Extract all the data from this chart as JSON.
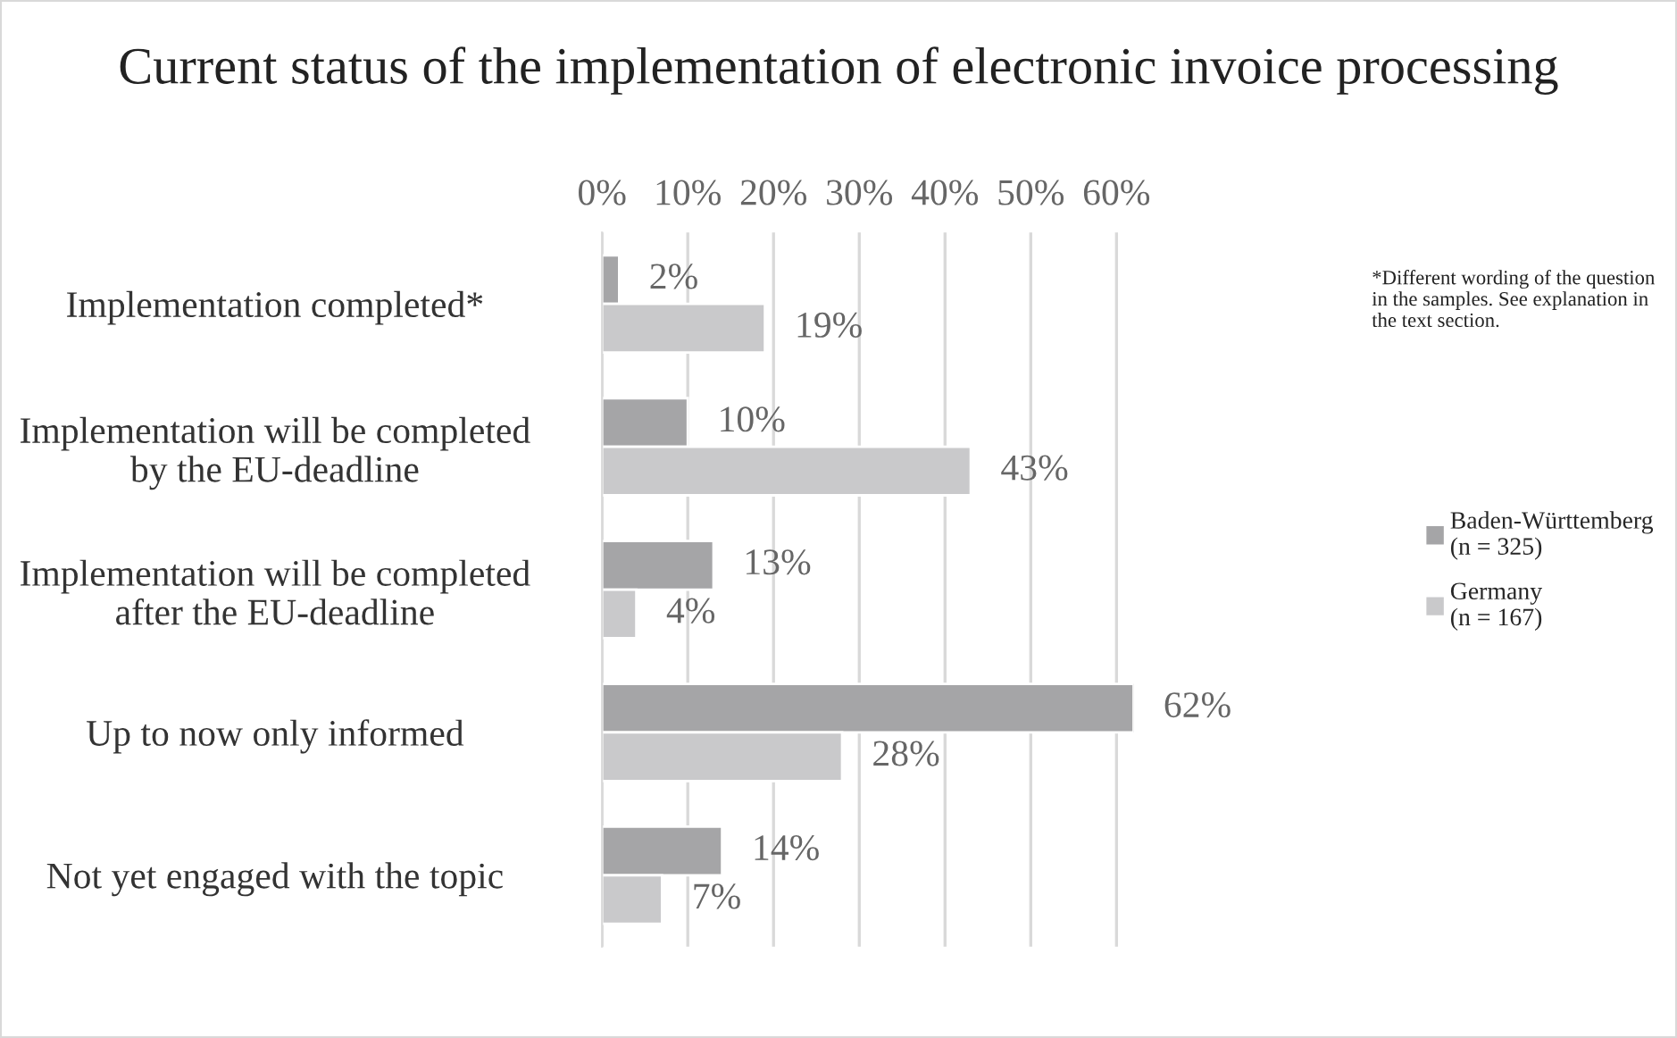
{
  "chart_data": {
    "type": "bar",
    "orientation": "horizontal",
    "title": "Current status of the implementation of electronic invoice processing",
    "categories": [
      "Implementation completed*",
      "Implementation will be completed\nby the EU-deadline",
      "Implementation will be completed\nafter the EU-deadline",
      "Up to now only informed",
      "Not yet engaged with the topic"
    ],
    "series": [
      {
        "name": "Baden-Württemberg\n(n = 325)",
        "color": "#a5a5a7",
        "values": [
          2,
          10,
          13,
          62,
          14
        ],
        "value_labels": [
          "2%",
          "10%",
          "13%",
          "62%",
          "14%"
        ]
      },
      {
        "name": "Germany\n(n = 167)",
        "color": "#c9c9cb",
        "values": [
          19,
          43,
          4,
          28,
          7
        ],
        "value_labels": [
          "19%",
          "43%",
          "4%",
          "28%",
          "7%"
        ]
      }
    ],
    "xlim": [
      0,
      62
    ],
    "xticks": [
      {
        "value": 0,
        "label": "0%"
      },
      {
        "value": 10,
        "label": "10%"
      },
      {
        "value": 20,
        "label": "20%"
      },
      {
        "value": 30,
        "label": "30%"
      },
      {
        "value": 40,
        "label": "40%"
      },
      {
        "value": 50,
        "label": "50%"
      },
      {
        "value": 60,
        "label": "60%"
      }
    ],
    "grid": "x",
    "legend": "right",
    "annotations": [
      "*Different wording of the question\nin the samples. See explanation in\nthe text section."
    ]
  }
}
